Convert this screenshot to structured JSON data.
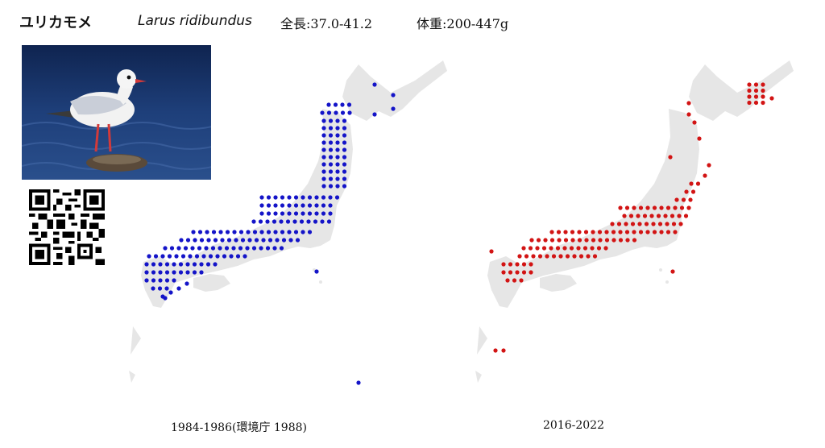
{
  "species": {
    "japanese_name": "ユリカモメ",
    "scientific_name": "Larus ridibundus",
    "length": "全長:37.0-41.2",
    "weight": "体重:200-447g"
  },
  "maps": {
    "left": {
      "caption": "1984-1986(環境庁 1988)",
      "dot_color": "#1414c8"
    },
    "right": {
      "caption": "2016-2022",
      "dot_color": "#d21414"
    }
  },
  "colors": {
    "land": "#e6e6e6",
    "water": "#1e3a6e",
    "bird_body": "#f2f2f2"
  }
}
